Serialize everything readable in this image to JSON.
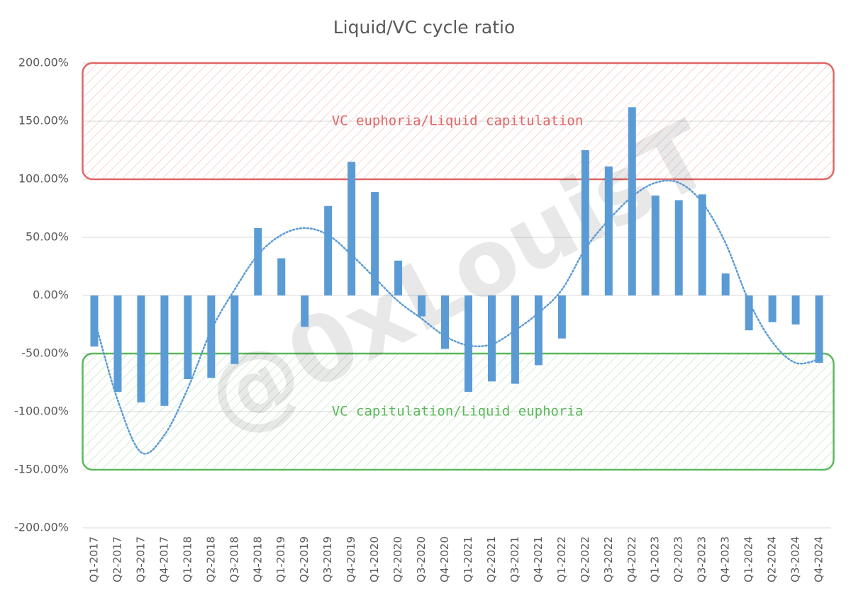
{
  "chart_data": {
    "type": "bar",
    "title": "Liquid/VC cycle ratio",
    "categories": [
      "Q1-2017",
      "Q2-2017",
      "Q3-2017",
      "Q4-2017",
      "Q1-2018",
      "Q2-2018",
      "Q3-2018",
      "Q4-2018",
      "Q1-2019",
      "Q2-2019",
      "Q3-2019",
      "Q4-2019",
      "Q1-2020",
      "Q2-2020",
      "Q3-2020",
      "Q4-2020",
      "Q1-2021",
      "Q2-2021",
      "Q3-2021",
      "Q4-2021",
      "Q1-2022",
      "Q2-2022",
      "Q3-2022",
      "Q4-2022",
      "Q1-2023",
      "Q2-2023",
      "Q3-2023",
      "Q4-2023",
      "Q1-2024",
      "Q2-2024",
      "Q3-2024",
      "Q4-2024"
    ],
    "values": [
      -44,
      -83,
      -92,
      -95,
      -72,
      -71,
      -59,
      58,
      32,
      -27,
      77,
      115,
      89,
      30,
      -18,
      -46,
      -83,
      -74,
      -76,
      -60,
      -37,
      125,
      111,
      162,
      86,
      82,
      87,
      19,
      -30,
      -23,
      -25,
      -58
    ],
    "color": "#5b9bd5",
    "trendline": {
      "color": "#5b9bd5",
      "values": [
        -20,
        -90,
        -135,
        -120,
        -80,
        -30,
        5,
        35,
        52,
        58,
        52,
        35,
        15,
        -5,
        -20,
        -35,
        -43,
        -42,
        -30,
        -15,
        5,
        40,
        65,
        85,
        97,
        97,
        80,
        45,
        -5,
        -40,
        -58,
        -55
      ]
    },
    "ylim": [
      -200,
      200
    ],
    "yticks": [
      {
        "value": -200,
        "label": "-200.00%"
      },
      {
        "value": -150,
        "label": "-150.00%"
      },
      {
        "value": -100,
        "label": "-100.00%"
      },
      {
        "value": -50,
        "label": "-50.00%"
      },
      {
        "value": 0,
        "label": "0.00%"
      },
      {
        "value": 50,
        "label": "50.00%"
      },
      {
        "value": 100,
        "label": "100.00%"
      },
      {
        "value": 150,
        "label": "150.00%"
      },
      {
        "value": 200,
        "label": "200.00%"
      }
    ],
    "grid": true,
    "zones": [
      {
        "text": "VC euphoria/Liquid capitulation",
        "range": [
          100,
          200
        ],
        "color": "#e06666"
      },
      {
        "text": "VC capitulation/Liquid euphoria",
        "range": [
          -150,
          -50
        ],
        "color": "#5cb85c"
      }
    ],
    "watermark": "@0xLouisT"
  }
}
